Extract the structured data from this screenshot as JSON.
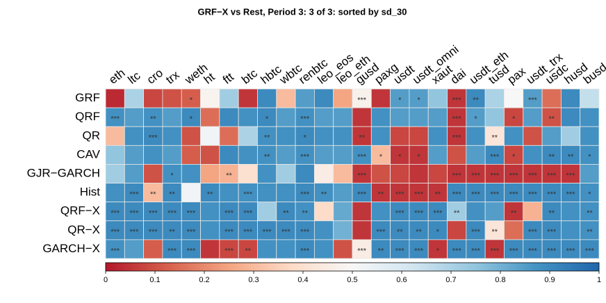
{
  "chart_data": {
    "type": "heatmap",
    "title": "GRF−X vs Rest,  Period 3: 3 of 3: sorted by sd_30",
    "columns": [
      "eth",
      "ltc",
      "cro",
      "trx",
      "weth",
      "ht",
      "ftt",
      "btc",
      "hbtc",
      "wbtc",
      "renbtc",
      "leo_eos",
      "leo_eth",
      "gusd",
      "paxg",
      "usdt",
      "usdt_omni",
      "xaut",
      "dai",
      "usdt_eth",
      "tusd",
      "pax",
      "usdt_trx",
      "usdc",
      "husd",
      "busd"
    ],
    "rows": [
      "GRF",
      "QRF",
      "QR",
      "CAV",
      "GJR−GARCH",
      "Hist",
      "QRF−X",
      "QR−X",
      "GARCH−X"
    ],
    "values": [
      [
        0.03,
        0.7,
        0.08,
        0.1,
        0.12,
        0.48,
        0.72,
        0.05,
        0.9,
        0.3,
        0.85,
        0.9,
        0.25,
        0.47,
        0.05,
        0.85,
        0.85,
        0.75,
        0.05,
        0.9,
        0.7,
        0.5,
        0.85,
        0.15,
        0.9,
        0.65
      ],
      [
        0.88,
        0.85,
        0.88,
        0.85,
        0.9,
        0.15,
        0.9,
        0.88,
        0.9,
        0.85,
        0.88,
        0.85,
        0.85,
        0.05,
        0.88,
        0.85,
        0.85,
        0.85,
        0.05,
        0.85,
        0.75,
        0.08,
        0.85,
        0.1,
        0.9,
        0.88
      ],
      [
        0.3,
        0.88,
        0.9,
        0.88,
        0.1,
        0.52,
        0.15,
        0.7,
        0.88,
        0.88,
        0.9,
        0.88,
        0.88,
        0.05,
        0.88,
        0.08,
        0.08,
        0.88,
        0.05,
        0.88,
        0.42,
        0.88,
        0.1,
        0.85,
        0.72,
        0.88
      ],
      [
        0.75,
        0.85,
        0.88,
        0.85,
        0.12,
        0.1,
        0.9,
        0.88,
        0.88,
        0.85,
        0.88,
        0.85,
        0.85,
        0.88,
        0.3,
        0.05,
        0.05,
        0.85,
        0.1,
        0.85,
        0.9,
        0.08,
        0.88,
        0.9,
        0.9,
        0.88
      ],
      [
        0.72,
        0.85,
        0.1,
        0.88,
        0.88,
        0.25,
        0.28,
        0.4,
        0.88,
        0.72,
        0.9,
        0.45,
        0.3,
        0.05,
        0.1,
        0.08,
        0.05,
        0.08,
        0.05,
        0.05,
        0.05,
        0.05,
        0.05,
        0.05,
        0.05,
        0.85
      ],
      [
        0.88,
        0.9,
        0.3,
        0.9,
        0.52,
        0.9,
        0.88,
        0.88,
        0.88,
        0.88,
        0.9,
        0.88,
        0.85,
        0.9,
        0.05,
        0.05,
        0.05,
        0.05,
        0.9,
        0.9,
        0.9,
        0.9,
        0.9,
        0.9,
        0.9,
        0.88
      ],
      [
        0.9,
        0.9,
        0.9,
        0.9,
        0.9,
        0.88,
        0.9,
        0.9,
        0.72,
        0.9,
        0.88,
        0.38,
        0.82,
        0.05,
        0.88,
        0.9,
        0.9,
        0.9,
        0.72,
        0.88,
        0.85,
        0.05,
        0.28,
        0.9,
        0.88,
        0.88
      ],
      [
        0.9,
        0.9,
        0.9,
        0.9,
        0.9,
        0.88,
        0.9,
        0.9,
        0.9,
        0.9,
        0.9,
        0.88,
        0.8,
        0.05,
        0.9,
        0.9,
        0.9,
        0.9,
        0.08,
        0.9,
        0.42,
        0.15,
        0.9,
        0.9,
        0.88,
        0.88
      ],
      [
        0.88,
        0.85,
        0.12,
        0.9,
        0.9,
        0.05,
        0.08,
        0.08,
        0.88,
        0.88,
        0.9,
        0.88,
        0.1,
        0.45,
        0.9,
        0.9,
        0.9,
        0.05,
        0.9,
        0.9,
        0.05,
        0.9,
        0.9,
        0.9,
        0.9,
        0.9
      ]
    ],
    "annotations": [
      [
        null,
        null,
        null,
        null,
        "*",
        null,
        null,
        null,
        null,
        null,
        null,
        null,
        null,
        "***",
        null,
        "*",
        "*",
        null,
        "***",
        "**",
        null,
        null,
        "***",
        null,
        null,
        null
      ],
      [
        "***",
        null,
        "**",
        null,
        "*",
        null,
        null,
        null,
        "*",
        null,
        "***",
        null,
        null,
        null,
        null,
        null,
        null,
        null,
        "***",
        "*",
        null,
        "*",
        null,
        "**",
        null,
        null
      ],
      [
        null,
        null,
        "***",
        null,
        null,
        null,
        null,
        null,
        "**",
        null,
        "*",
        null,
        null,
        "**",
        null,
        null,
        null,
        null,
        "***",
        null,
        "**",
        null,
        null,
        null,
        null,
        null
      ],
      [
        null,
        null,
        null,
        null,
        null,
        null,
        null,
        null,
        "**",
        null,
        "***",
        null,
        null,
        "***",
        "*",
        "*",
        "*",
        null,
        null,
        null,
        "***",
        "*",
        null,
        "**",
        "**",
        "*"
      ],
      [
        null,
        null,
        null,
        "*",
        null,
        null,
        "**",
        null,
        null,
        null,
        null,
        null,
        null,
        "***",
        null,
        null,
        null,
        null,
        "***",
        "***",
        "***",
        "***",
        "***",
        "***",
        "***",
        null
      ],
      [
        null,
        "***",
        "**",
        "**",
        null,
        "**",
        null,
        "***",
        null,
        null,
        "***",
        "**",
        null,
        "***",
        "**",
        "***",
        "***",
        "**",
        "***",
        "***",
        "***",
        "***",
        "***",
        "***",
        "***",
        "*"
      ],
      [
        "***",
        "***",
        "***",
        "***",
        "***",
        null,
        "***",
        "***",
        null,
        "**",
        "**",
        null,
        null,
        null,
        null,
        "***",
        "***",
        "***",
        "**",
        null,
        null,
        "**",
        null,
        "**",
        null,
        "**"
      ],
      [
        "***",
        "***",
        "***",
        "**",
        "***",
        null,
        "***",
        "***",
        "***",
        "***",
        "***",
        null,
        null,
        null,
        "***",
        "**",
        "**",
        "*",
        null,
        "***",
        "**",
        null,
        "***",
        "***",
        null,
        "**"
      ],
      [
        "***",
        null,
        null,
        "***",
        "***",
        null,
        "***",
        "**",
        null,
        null,
        "***",
        null,
        null,
        "***",
        "**",
        "***",
        "***",
        "*",
        "***",
        "***",
        "***",
        "***",
        "***",
        "***",
        "***",
        "***"
      ]
    ],
    "colorscale": [
      "#b2182b",
      "#d6604d",
      "#f4a582",
      "#fddbc7",
      "#f7f7f7",
      "#d1e5f0",
      "#92c5de",
      "#4393c3",
      "#2166ac"
    ],
    "vlim": [
      0,
      1
    ],
    "ticks": [
      0,
      0.1,
      0.2,
      0.3,
      0.4,
      0.5,
      0.6,
      0.7,
      0.8,
      0.9,
      1
    ]
  }
}
